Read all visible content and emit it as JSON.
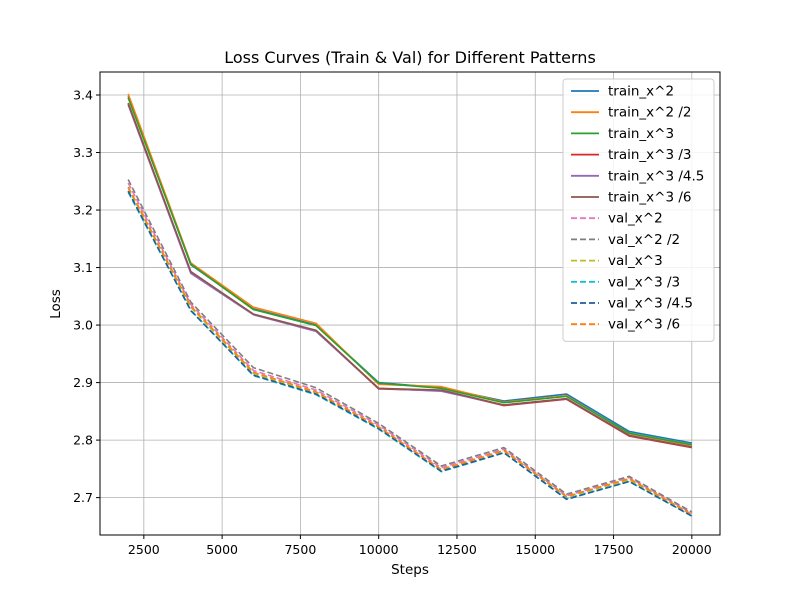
{
  "chart_data": {
    "type": "line",
    "title": "Loss Curves (Train & Val) for Different Patterns",
    "xlabel": "Steps",
    "ylabel": "Loss",
    "xlim": [
      1100,
      20900
    ],
    "ylim": [
      2.635,
      3.44
    ],
    "xticks": [
      2500,
      5000,
      7500,
      10000,
      12500,
      15000,
      17500,
      20000
    ],
    "yticks": [
      2.7,
      2.8,
      2.9,
      3.0,
      3.1,
      3.2,
      3.3,
      3.4
    ],
    "xtick_labels": [
      "2500",
      "5000",
      "7500",
      "10000",
      "12500",
      "15000",
      "17500",
      "20000"
    ],
    "ytick_labels": [
      "2.7",
      "2.8",
      "2.9",
      "3.0",
      "3.1",
      "3.2",
      "3.3",
      "3.4"
    ],
    "grid": true,
    "legend_position": "top-right",
    "x": [
      2000,
      4000,
      6000,
      8000,
      10000,
      12000,
      14000,
      16000,
      18000,
      20000
    ],
    "series": [
      {
        "name": "train_x^2",
        "color": "#1f77b4",
        "dash": "solid",
        "values": [
          3.398,
          3.105,
          3.028,
          3.0,
          2.9,
          2.891,
          2.868,
          2.88,
          2.815,
          2.795
        ]
      },
      {
        "name": "train_x^2 /2",
        "color": "#ff7f0e",
        "dash": "solid",
        "values": [
          3.402,
          3.108,
          3.031,
          3.003,
          2.897,
          2.893,
          2.866,
          2.877,
          2.811,
          2.791
        ]
      },
      {
        "name": "train_x^3",
        "color": "#2ca02c",
        "dash": "solid",
        "values": [
          3.395,
          3.106,
          3.027,
          2.999,
          2.899,
          2.89,
          2.865,
          2.876,
          2.812,
          2.792
        ]
      },
      {
        "name": "train_x^3 /3",
        "color": "#d62728",
        "dash": "solid",
        "values": [
          3.386,
          3.092,
          3.019,
          2.99,
          2.889,
          2.886,
          2.86,
          2.871,
          2.807,
          2.787
        ]
      },
      {
        "name": "train_x^3 /4.5",
        "color": "#9467bd",
        "dash": "solid",
        "values": [
          3.383,
          3.09,
          3.018,
          2.989,
          2.89,
          2.885,
          2.861,
          2.872,
          2.808,
          2.788
        ]
      },
      {
        "name": "train_x^3 /6",
        "color": "#8c564b",
        "dash": "solid",
        "values": [
          3.385,
          3.093,
          3.019,
          2.991,
          2.89,
          2.887,
          2.861,
          2.872,
          2.808,
          2.788
        ]
      },
      {
        "name": "val_x^2",
        "color": "#e377c2",
        "dash": "dashed",
        "values": [
          3.247,
          3.036,
          2.921,
          2.887,
          2.826,
          2.752,
          2.784,
          2.703,
          2.735,
          2.673
        ]
      },
      {
        "name": "val_x^2 /2",
        "color": "#7f7f7f",
        "dash": "dashed",
        "values": [
          3.253,
          3.04,
          2.926,
          2.891,
          2.829,
          2.755,
          2.787,
          2.706,
          2.737,
          2.675
        ]
      },
      {
        "name": "val_x^3",
        "color": "#bcbd22",
        "dash": "dashed",
        "values": [
          3.238,
          3.031,
          2.916,
          2.882,
          2.822,
          2.748,
          2.781,
          2.701,
          2.731,
          2.67
        ]
      },
      {
        "name": "val_x^3 /3",
        "color": "#17becf",
        "dash": "dashed",
        "values": [
          3.231,
          3.026,
          2.912,
          2.879,
          2.819,
          2.745,
          2.778,
          2.698,
          2.728,
          2.668
        ]
      },
      {
        "name": "val_x^3 /4.5",
        "color": "#1f5f9b",
        "dash": "dashed",
        "values": [
          3.233,
          3.025,
          2.913,
          2.88,
          2.82,
          2.746,
          2.778,
          2.697,
          2.728,
          2.668
        ]
      },
      {
        "name": "val_x^3 /6",
        "color": "#ff7f0e",
        "dash": "dashed",
        "values": [
          3.24,
          3.033,
          2.918,
          2.884,
          2.823,
          2.749,
          2.782,
          2.702,
          2.733,
          2.671
        ]
      }
    ]
  }
}
